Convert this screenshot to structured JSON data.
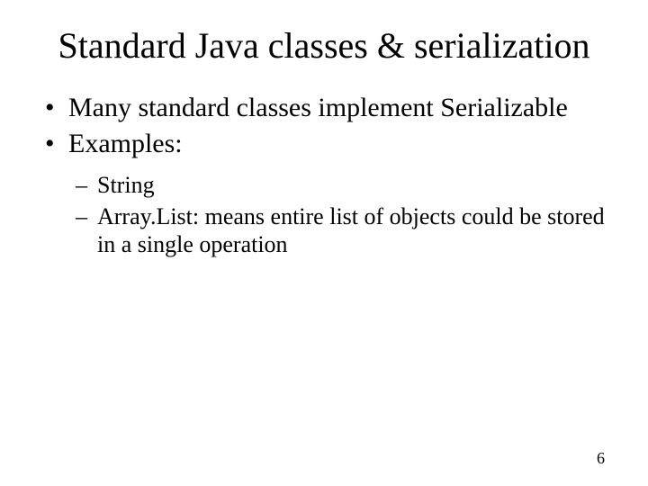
{
  "slide": {
    "title": "Standard Java classes & serialization",
    "bullets": [
      {
        "text": "Many standard classes implement Serializable"
      },
      {
        "text": "Examples:"
      }
    ],
    "sub_bullets": [
      {
        "text": "String"
      },
      {
        "text": "Array.List: means entire list of objects could be stored in a single operation"
      }
    ],
    "page_number": "6"
  },
  "style": {
    "background_color": "#ffffff",
    "text_color": "#000000",
    "title_fontsize": 40,
    "bullet_fontsize": 30,
    "sub_bullet_fontsize": 26,
    "pagenum_fontsize": 18,
    "font_family": "Times New Roman"
  }
}
